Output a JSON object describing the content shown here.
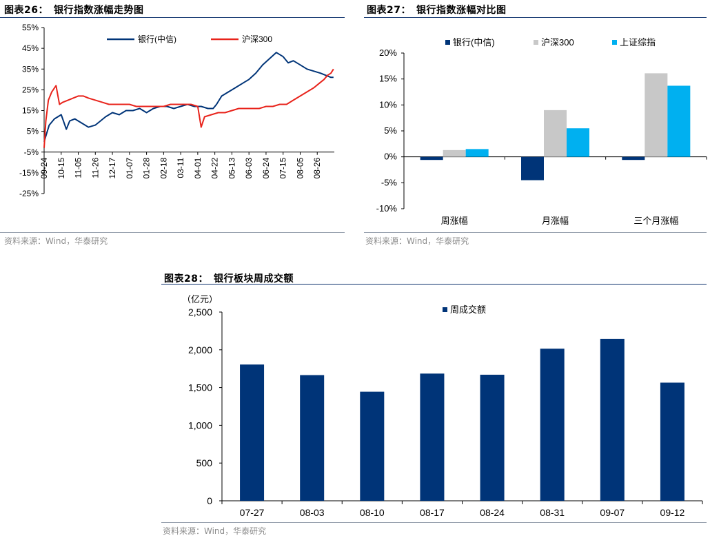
{
  "colors": {
    "navy": "#003478",
    "red": "#e8231b",
    "gray": "#c8c8c8",
    "cyan": "#00b0f0",
    "rule": "#0b2f6b"
  },
  "chart_data": [
    {
      "type": "line",
      "title_prefix": "图表26：",
      "title": "银行指数涨幅走势图",
      "xlabel": "",
      "ylabel": "",
      "ylim": [
        -25,
        55
      ],
      "yticks": [
        "55%",
        "45%",
        "35%",
        "25%",
        "15%",
        "5%",
        "-5%",
        "-15%",
        "-25%"
      ],
      "categories": [
        "09-24",
        "10-15",
        "11-05",
        "11-26",
        "12-17",
        "01-07",
        "01-28",
        "02-18",
        "03-11",
        "04-01",
        "04-22",
        "05-13",
        "06-03",
        "06-24",
        "07-15",
        "08-05",
        "08-26"
      ],
      "series": [
        {
          "name": "银行(中信)",
          "color": "#003478",
          "x": [
            0,
            0.3,
            0.6,
            1.0,
            1.3,
            1.5,
            1.8,
            2.2,
            2.6,
            3.0,
            3.3,
            3.6,
            4.0,
            4.4,
            4.8,
            5.2,
            5.6,
            6.0,
            6.4,
            6.8,
            7.2,
            7.6,
            8.0,
            8.4,
            8.8,
            9.2,
            9.6,
            9.9,
            10.1,
            10.4,
            10.8,
            11.2,
            11.6,
            12.0,
            12.4,
            12.8,
            13.2,
            13.6,
            14.0,
            14.3,
            14.6,
            15.0,
            15.4,
            15.8,
            16.2,
            16.5,
            16.8,
            16.95
          ],
          "y": [
            0,
            8,
            11,
            13,
            6,
            10,
            11,
            9,
            7,
            8,
            10,
            12,
            14,
            13,
            15,
            15,
            16,
            14,
            16,
            17,
            17,
            16,
            17,
            18,
            17,
            17,
            16,
            16,
            18,
            22,
            24,
            26,
            28,
            30,
            33,
            37,
            40,
            43,
            41,
            38,
            39,
            37,
            35,
            34,
            33,
            32,
            31,
            31
          ]
        },
        {
          "name": "沪深300",
          "color": "#e8231b",
          "x": [
            0,
            0.1,
            0.25,
            0.45,
            0.7,
            0.9,
            1.1,
            1.4,
            1.7,
            2.0,
            2.3,
            2.6,
            3.0,
            3.4,
            3.8,
            4.2,
            4.6,
            5.0,
            5.4,
            5.8,
            6.2,
            6.6,
            7.0,
            7.4,
            7.8,
            8.2,
            8.6,
            9.0,
            9.2,
            9.4,
            9.8,
            10.2,
            10.6,
            11.0,
            11.4,
            11.8,
            12.2,
            12.6,
            13.0,
            13.4,
            13.8,
            14.2,
            14.6,
            15.0,
            15.4,
            15.8,
            16.1,
            16.4,
            16.6,
            16.8,
            16.95
          ],
          "y": [
            -3,
            10,
            20,
            24,
            27,
            18,
            19,
            20,
            21,
            22,
            22,
            21,
            20,
            19,
            18,
            18,
            18,
            18,
            17,
            17,
            17,
            17,
            17,
            18,
            18,
            18,
            18,
            17,
            7,
            12,
            13,
            14,
            14,
            15,
            16,
            16,
            16,
            16,
            17,
            17,
            18,
            18,
            20,
            22,
            24,
            26,
            28,
            30,
            32,
            33,
            35
          ]
        }
      ]
    },
    {
      "type": "bar",
      "title_prefix": "图表27：",
      "title": "银行指数涨幅对比图",
      "xlabel": "",
      "ylabel": "",
      "ylim": [
        -10,
        20
      ],
      "yticks": [
        "20%",
        "15%",
        "10%",
        "5%",
        "0%",
        "-5%",
        "-10%"
      ],
      "categories": [
        "周涨幅",
        "月涨幅",
        "三个月涨幅"
      ],
      "series": [
        {
          "name": "银行(中信)",
          "color": "#003478",
          "values": [
            -0.6,
            -4.5,
            -0.6
          ]
        },
        {
          "name": "沪深300",
          "color": "#c8c8c8",
          "values": [
            1.3,
            9.0,
            16.1
          ]
        },
        {
          "name": "上证综指",
          "color": "#00b0f0",
          "values": [
            1.5,
            5.5,
            13.7
          ]
        }
      ]
    },
    {
      "type": "bar",
      "title_prefix": "图表28：",
      "title": "银行板块周成交额",
      "xlabel": "",
      "ylabel": "（亿元）",
      "ylim": [
        0,
        2500
      ],
      "yticks": [
        "2,500",
        "2,000",
        "1,500",
        "1,000",
        "500",
        "0"
      ],
      "categories": [
        "07-27",
        "08-03",
        "08-10",
        "08-17",
        "08-24",
        "08-31",
        "09-07",
        "09-12"
      ],
      "series": [
        {
          "name": "周成交额",
          "color": "#003478",
          "values": [
            1805,
            1665,
            1445,
            1685,
            1670,
            2015,
            2145,
            1565
          ]
        }
      ]
    }
  ],
  "sources": {
    "chart26": "资料来源：Wind，华泰研究",
    "chart27": "资料来源：Wind，华泰研究",
    "chart28": "资料来源：Wind，华泰研究"
  }
}
